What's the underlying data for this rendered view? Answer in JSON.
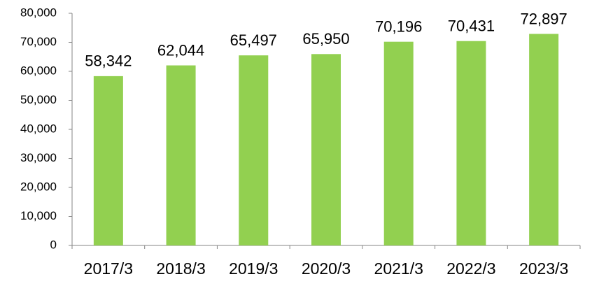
{
  "chart_data": {
    "type": "bar",
    "categories": [
      "2017/3",
      "2018/3",
      "2019/3",
      "2020/3",
      "2021/3",
      "2022/3",
      "2023/3"
    ],
    "values": [
      58342,
      62044,
      65497,
      65950,
      70196,
      70431,
      72897
    ],
    "value_labels": [
      "58,342",
      "62,044",
      "65,497",
      "65,950",
      "70,196",
      "70,431",
      "72,897"
    ],
    "color": "#92d050",
    "ylim": [
      0,
      80000
    ],
    "yticks": [
      0,
      {
        "value": 10000,
        "label": "10,000"
      },
      {
        "value": 20000,
        "label": "20,000"
      },
      {
        "value": 30000,
        "label": "30,000"
      },
      {
        "value": 40000,
        "label": "40,000"
      },
      {
        "value": 50000,
        "label": "50,000"
      },
      {
        "value": 60000,
        "label": "60,000"
      },
      {
        "value": 70000,
        "label": "70,000"
      },
      {
        "value": 80000,
        "label": "80,000"
      }
    ],
    "grid": false
  }
}
